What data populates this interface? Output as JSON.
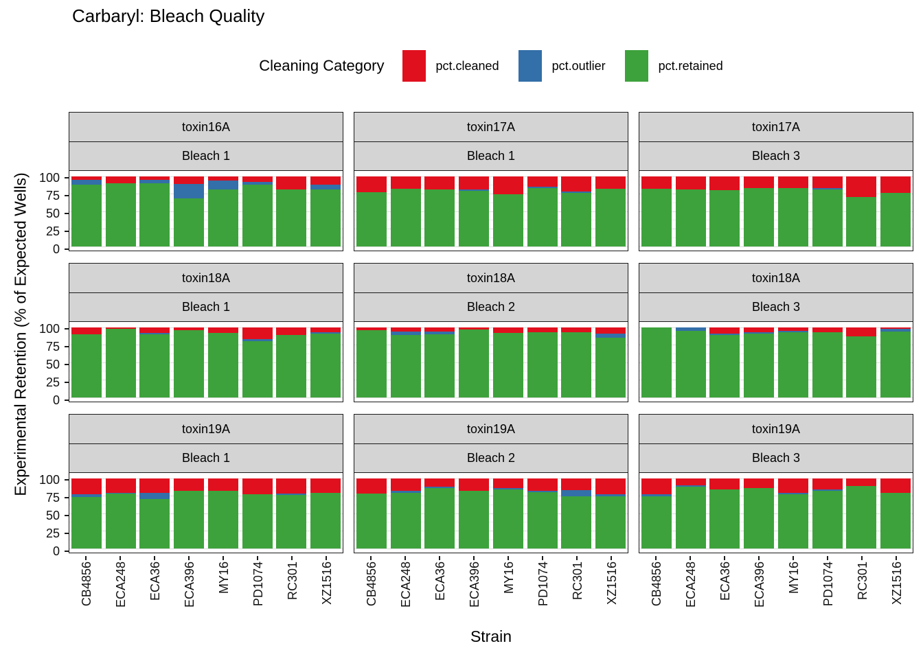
{
  "title": "Carbaryl: Bleach Quality",
  "legend": {
    "title": "Cleaning Category",
    "items": [
      {
        "label": "pct.cleaned",
        "color": "#e0101e"
      },
      {
        "label": "pct.outlier",
        "color": "#336fa8"
      },
      {
        "label": "pct.retained",
        "color": "#3da23c"
      }
    ]
  },
  "axes": {
    "y_title": "Experimental Retention (% of Expected Wells)",
    "x_title": "Strain",
    "y_ticks": [
      100,
      75,
      50,
      25,
      0
    ],
    "y_minor_ticks": [
      87.5,
      62.5,
      37.5,
      12.5
    ],
    "ylim": [
      0,
      100
    ]
  },
  "chart_data": {
    "type": "bar",
    "stacked": true,
    "grid": true,
    "legend_position": "top",
    "facet_grid": {
      "rows": 3,
      "cols": 3
    },
    "categories": [
      "CB4856",
      "ECA248",
      "ECA36",
      "ECA396",
      "MY16",
      "PD1074",
      "RC301",
      "XZ1516"
    ],
    "facets": [
      {
        "toxin": "toxin16A",
        "bleach": "Bleach 1",
        "series": [
          {
            "name": "pct.cleaned",
            "values": [
              5,
              10,
              5,
              11,
              6,
              8,
              19,
              12
            ]
          },
          {
            "name": "pct.outlier",
            "values": [
              7,
              0,
              5,
              20,
              13,
              4,
              0,
              7
            ]
          },
          {
            "name": "pct.retained",
            "values": [
              88,
              90,
              90,
              69,
              81,
              88,
              81,
              81
            ]
          }
        ]
      },
      {
        "toxin": "toxin17A",
        "bleach": "Bleach 1",
        "series": [
          {
            "name": "pct.cleaned",
            "values": [
              23,
              18,
              19,
              19,
              25,
              15,
              22,
              18
            ]
          },
          {
            "name": "pct.outlier",
            "values": [
              0,
              0,
              0,
              2,
              0,
              2,
              2,
              0
            ]
          },
          {
            "name": "pct.retained",
            "values": [
              77,
              82,
              81,
              79,
              75,
              83,
              76,
              82
            ]
          }
        ]
      },
      {
        "toxin": "toxin17A",
        "bleach": "Bleach 3",
        "series": [
          {
            "name": "pct.cleaned",
            "values": [
              18,
              19,
              20,
              17,
              17,
              17,
              29,
              24
            ]
          },
          {
            "name": "pct.outlier",
            "values": [
              0,
              0,
              0,
              0,
              0,
              2,
              0,
              0
            ]
          },
          {
            "name": "pct.retained",
            "values": [
              82,
              81,
              80,
              83,
              83,
              81,
              71,
              76
            ]
          }
        ]
      },
      {
        "toxin": "toxin18A",
        "bleach": "Bleach 1",
        "series": [
          {
            "name": "pct.cleaned",
            "values": [
              10,
              2,
              8,
              4,
              8,
              17,
              11,
              7
            ]
          },
          {
            "name": "pct.outlier",
            "values": [
              0,
              0,
              2,
              0,
              0,
              3,
              0,
              2
            ]
          },
          {
            "name": "pct.retained",
            "values": [
              90,
              98,
              90,
              96,
              92,
              80,
              89,
              91
            ]
          }
        ]
      },
      {
        "toxin": "toxin18A",
        "bleach": "Bleach 2",
        "series": [
          {
            "name": "pct.cleaned",
            "values": [
              4,
              6,
              6,
              3,
              8,
              7,
              7,
              9
            ]
          },
          {
            "name": "pct.outlier",
            "values": [
              0,
              5,
              4,
              0,
              0,
              0,
              0,
              6
            ]
          },
          {
            "name": "pct.retained",
            "values": [
              96,
              89,
              90,
              97,
              92,
              93,
              93,
              85
            ]
          }
        ]
      },
      {
        "toxin": "toxin18A",
        "bleach": "Bleach 3",
        "series": [
          {
            "name": "pct.cleaned",
            "values": [
              0,
              0,
              9,
              7,
              5,
              7,
              13,
              2
            ]
          },
          {
            "name": "pct.outlier",
            "values": [
              0,
              5,
              2,
              2,
              2,
              0,
              0,
              4
            ]
          },
          {
            "name": "pct.retained",
            "values": [
              100,
              95,
              89,
              91,
              93,
              93,
              87,
              94
            ]
          }
        ]
      },
      {
        "toxin": "toxin19A",
        "bleach": "Bleach 1",
        "series": [
          {
            "name": "pct.cleaned",
            "values": [
              23,
              21,
              21,
              18,
              18,
              23,
              22,
              21
            ]
          },
          {
            "name": "pct.outlier",
            "values": [
              3,
              1,
              8,
              0,
              0,
              0,
              2,
              0
            ]
          },
          {
            "name": "pct.retained",
            "values": [
              74,
              78,
              71,
              82,
              82,
              77,
              76,
              79
            ]
          }
        ]
      },
      {
        "toxin": "toxin19A",
        "bleach": "Bleach 2",
        "series": [
          {
            "name": "pct.cleaned",
            "values": [
              22,
              18,
              12,
              18,
              14,
              18,
              17,
              23
            ]
          },
          {
            "name": "pct.outlier",
            "values": [
              0,
              3,
              2,
              0,
              2,
              2,
              8,
              2
            ]
          },
          {
            "name": "pct.retained",
            "values": [
              78,
              79,
              86,
              82,
              84,
              80,
              75,
              75
            ]
          }
        ]
      },
      {
        "toxin": "toxin19A",
        "bleach": "Bleach 3",
        "series": [
          {
            "name": "pct.cleaned",
            "values": [
              23,
              10,
              16,
              14,
              21,
              16,
              11,
              21
            ]
          },
          {
            "name": "pct.outlier",
            "values": [
              2,
              2,
              0,
              0,
              2,
              2,
              0,
              0
            ]
          },
          {
            "name": "pct.retained",
            "values": [
              75,
              88,
              84,
              86,
              77,
              82,
              89,
              79
            ]
          }
        ]
      }
    ]
  }
}
